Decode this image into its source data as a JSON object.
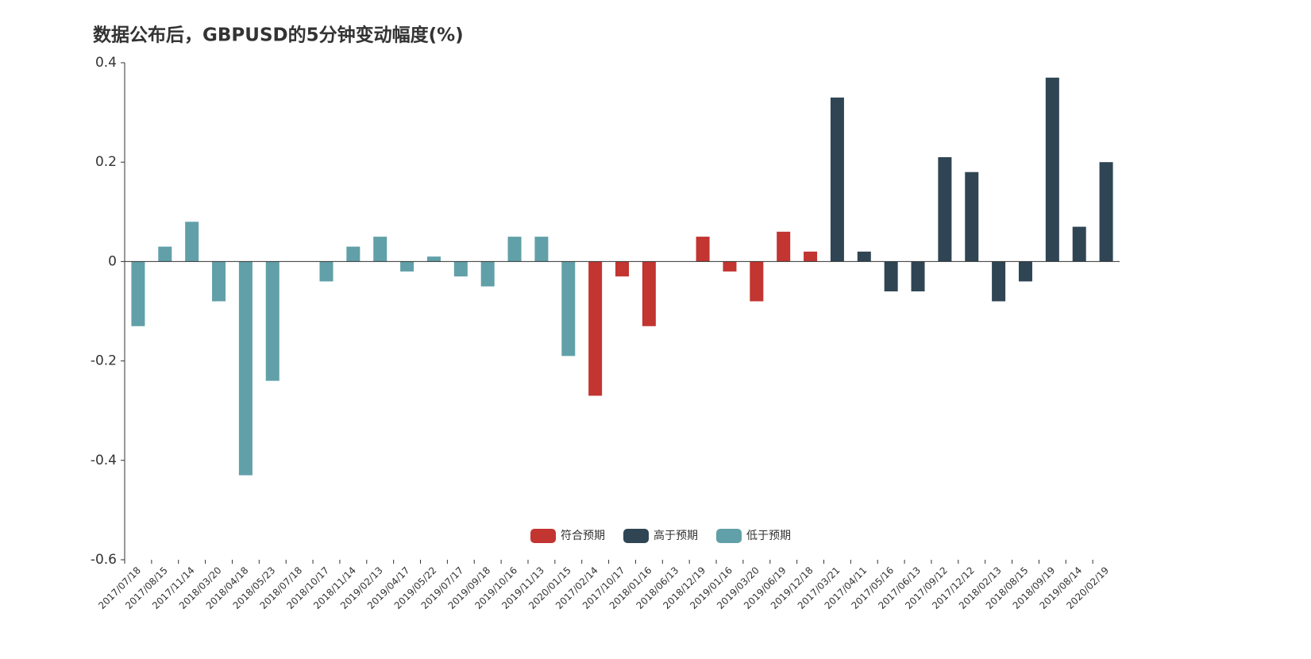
{
  "chart_data": {
    "type": "bar",
    "title": "数据公布后，GBPUSD的5分钟变动幅度(%)",
    "categories": [
      "2017/07/18",
      "2017/08/15",
      "2017/11/14",
      "2018/03/20",
      "2018/04/18",
      "2018/05/23",
      "2018/07/18",
      "2018/10/17",
      "2018/11/14",
      "2019/02/13",
      "2019/04/17",
      "2019/05/22",
      "2019/07/17",
      "2019/09/18",
      "2019/10/16",
      "2019/11/13",
      "2020/01/15",
      "2017/02/14",
      "2017/10/17",
      "2018/01/16",
      "2018/06/13",
      "2018/12/19",
      "2019/01/16",
      "2019/03/20",
      "2019/06/19",
      "2019/12/18",
      "2017/03/21",
      "2017/04/11",
      "2017/05/16",
      "2017/06/13",
      "2017/09/12",
      "2017/12/12",
      "2018/02/13",
      "2018/08/15",
      "2018/09/19",
      "2019/08/14",
      "2020/02/19"
    ],
    "series": [
      {
        "name": "符合预期",
        "color": "#c23531",
        "values": [
          null,
          null,
          null,
          null,
          null,
          null,
          null,
          null,
          null,
          null,
          null,
          null,
          null,
          null,
          null,
          null,
          null,
          -0.27,
          -0.03,
          -0.13,
          0,
          0.05,
          -0.02,
          -0.08,
          0.06,
          0.02,
          null,
          null,
          null,
          null,
          null,
          null,
          null,
          null,
          null,
          null,
          null
        ]
      },
      {
        "name": "高于预期",
        "color": "#2f4554",
        "values": [
          null,
          null,
          null,
          null,
          null,
          null,
          null,
          null,
          null,
          null,
          null,
          null,
          null,
          null,
          null,
          null,
          null,
          null,
          null,
          null,
          null,
          null,
          null,
          null,
          null,
          null,
          0.33,
          0.02,
          -0.06,
          -0.06,
          0.21,
          0.18,
          -0.08,
          -0.04,
          0.37,
          0.07,
          0.2
        ]
      },
      {
        "name": "低于预期",
        "color": "#61a0a8",
        "values": [
          -0.13,
          0.03,
          0.08,
          -0.08,
          -0.43,
          -0.24,
          0,
          -0.04,
          0.03,
          0.05,
          -0.02,
          0.01,
          -0.03,
          -0.05,
          0.05,
          0.05,
          -0.19,
          null,
          null,
          null,
          null,
          null,
          null,
          null,
          null,
          null,
          null,
          null,
          null,
          null,
          null,
          null,
          null,
          null,
          null,
          null,
          null
        ]
      }
    ],
    "ylim": [
      -0.6,
      0.4
    ],
    "yticks": [
      -0.6,
      -0.4,
      -0.2,
      0,
      0.2,
      0.4
    ]
  }
}
